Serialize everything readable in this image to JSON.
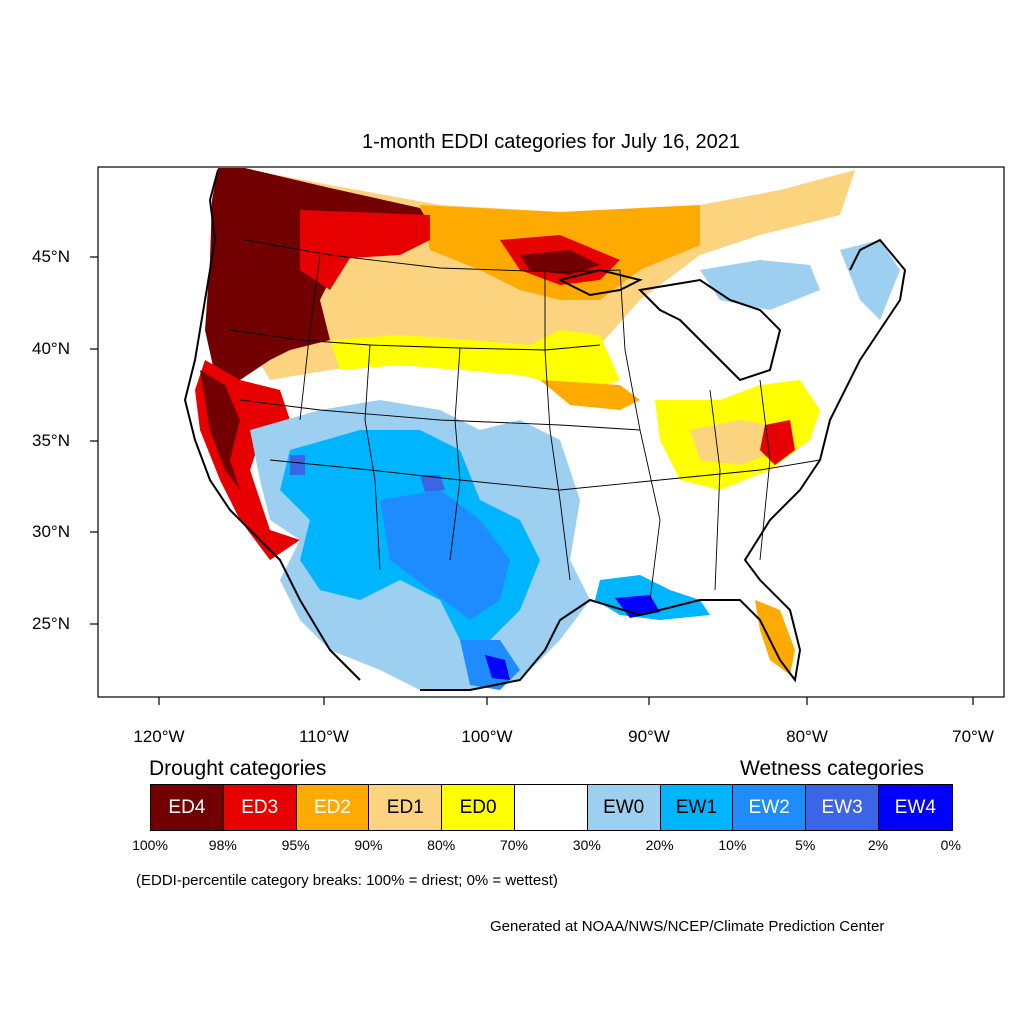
{
  "title": "1-month EDDI categories for July 16, 2021",
  "map": {
    "projection": "Lambert conformal, contiguous United States",
    "lat_labels": [
      "45°N",
      "40°N",
      "35°N",
      "30°N",
      "25°N"
    ],
    "lon_labels": [
      "120°W",
      "110°W",
      "100°W",
      "90°W",
      "80°W",
      "70°W"
    ],
    "region_colors": {
      "ED4": "#730000",
      "ED3": "#e60000",
      "ED2": "#ffaa00",
      "ED1": "#fcd37f",
      "ED0": "#ffff00",
      "EW0": "#9dcff0",
      "EW1": "#00b5ff",
      "EW2": "#1e8cff",
      "EW3": "#3c64e6",
      "EW4": "#0000ff"
    }
  },
  "legend": {
    "drought_heading": "Drought categories",
    "wetness_heading": "Wetness categories",
    "categories": [
      {
        "label": "ED4",
        "color": "#730000",
        "text_color": "#ffffff"
      },
      {
        "label": "ED3",
        "color": "#e60000",
        "text_color": "#ffffff"
      },
      {
        "label": "ED2",
        "color": "#ffaa00",
        "text_color": "#ffffff"
      },
      {
        "label": "ED1",
        "color": "#fcd37f",
        "text_color": "#000000"
      },
      {
        "label": "ED0",
        "color": "#ffff00",
        "text_color": "#000000"
      },
      {
        "label": "",
        "color": "#ffffff",
        "text_color": "#000000"
      },
      {
        "label": "EW0",
        "color": "#9dcff0",
        "text_color": "#000000"
      },
      {
        "label": "EW1",
        "color": "#00b5ff",
        "text_color": "#000000"
      },
      {
        "label": "EW2",
        "color": "#1e8cff",
        "text_color": "#ffffff"
      },
      {
        "label": "EW3",
        "color": "#3c64e6",
        "text_color": "#ffffff"
      },
      {
        "label": "EW4",
        "color": "#0000ff",
        "text_color": "#ffffff"
      }
    ],
    "percentiles": [
      "100%",
      "98%",
      "95%",
      "90%",
      "80%",
      "70%",
      "30%",
      "20%",
      "10%",
      "5%",
      "2%",
      "0%"
    ]
  },
  "note": "(EDDI-percentile category breaks: 100% = driest; 0% = wettest)",
  "credit": "Generated at NOAA/NWS/NCEP/Climate Prediction Center"
}
